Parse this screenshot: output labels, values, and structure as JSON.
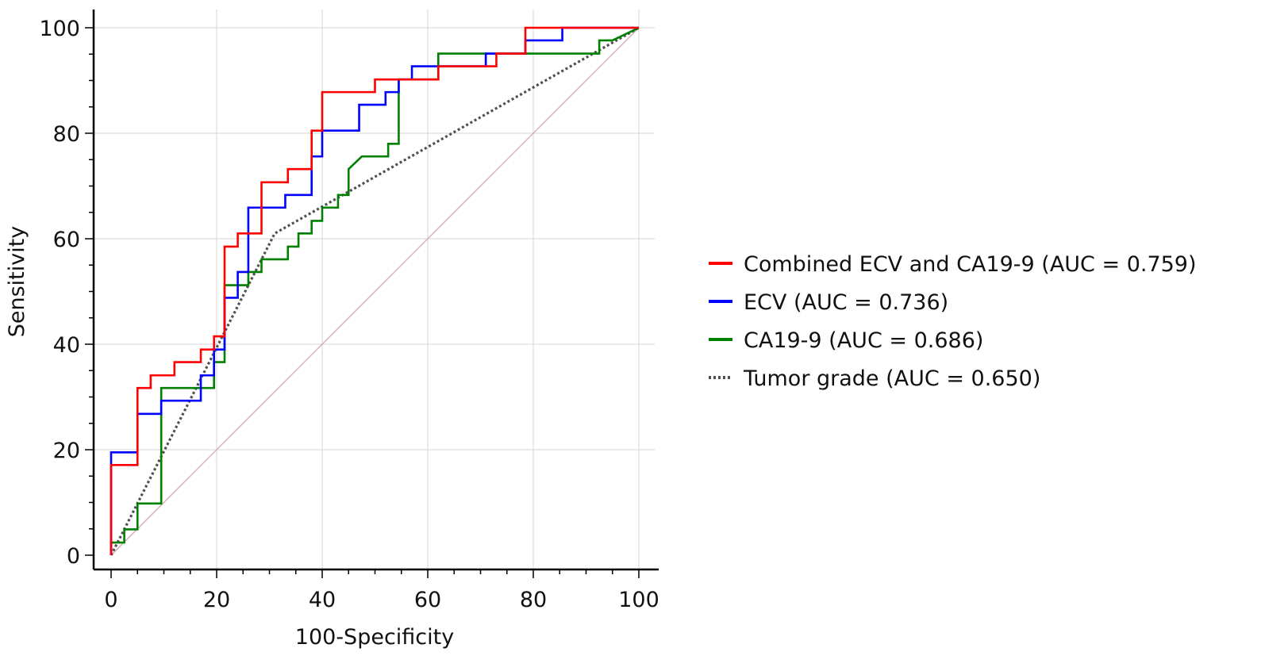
{
  "chart_data": {
    "type": "line",
    "xlabel": "100-Specificity",
    "ylabel": "Sensitivity",
    "xlim": [
      0,
      100
    ],
    "ylim": [
      0,
      100
    ],
    "x_ticks": [
      0,
      20,
      40,
      60,
      80,
      100
    ],
    "y_ticks": [
      0,
      20,
      40,
      60,
      80,
      100
    ],
    "grid": true,
    "legend_position": "right",
    "series": [
      {
        "name": "Combined ECV and CA19-9 (AUC = 0.759)",
        "color": "#ff0000",
        "style": "step",
        "points": [
          [
            0,
            0
          ],
          [
            0,
            17.1
          ],
          [
            5,
            17.1
          ],
          [
            5,
            31.7
          ],
          [
            7.5,
            31.7
          ],
          [
            7.5,
            34.1
          ],
          [
            12,
            34.1
          ],
          [
            12,
            36.6
          ],
          [
            17,
            36.6
          ],
          [
            17,
            39
          ],
          [
            19.5,
            39
          ],
          [
            19.5,
            41.5
          ],
          [
            21.5,
            41.5
          ],
          [
            21.5,
            58.5
          ],
          [
            24,
            58.5
          ],
          [
            24,
            61
          ],
          [
            28.5,
            61
          ],
          [
            28.5,
            70.7
          ],
          [
            33.5,
            70.7
          ],
          [
            33.5,
            73.2
          ],
          [
            38,
            73.2
          ],
          [
            38,
            80.5
          ],
          [
            40,
            80.5
          ],
          [
            40,
            87.8
          ],
          [
            50,
            87.8
          ],
          [
            50,
            90.2
          ],
          [
            62,
            90.2
          ],
          [
            62,
            92.7
          ],
          [
            73,
            92.7
          ],
          [
            73,
            95.1
          ],
          [
            78.5,
            95.1
          ],
          [
            78.5,
            100
          ],
          [
            100,
            100
          ]
        ]
      },
      {
        "name": "ECV (AUC = 0.736)",
        "color": "#0000ff",
        "style": "step",
        "points": [
          [
            0,
            0
          ],
          [
            0,
            19.5
          ],
          [
            5,
            19.5
          ],
          [
            5,
            26.8
          ],
          [
            9.5,
            26.8
          ],
          [
            9.5,
            29.3
          ],
          [
            17,
            29.3
          ],
          [
            17,
            34.1
          ],
          [
            19.5,
            34.1
          ],
          [
            19.5,
            39
          ],
          [
            21.5,
            39
          ],
          [
            21.5,
            48.8
          ],
          [
            24,
            48.8
          ],
          [
            24,
            53.7
          ],
          [
            26,
            53.7
          ],
          [
            26,
            65.9
          ],
          [
            33,
            65.9
          ],
          [
            33,
            68.3
          ],
          [
            38,
            68.3
          ],
          [
            38,
            75.6
          ],
          [
            40,
            75.6
          ],
          [
            40,
            80.5
          ],
          [
            47,
            80.5
          ],
          [
            47,
            85.4
          ],
          [
            52,
            85.4
          ],
          [
            52,
            87.8
          ],
          [
            54.5,
            87.8
          ],
          [
            54.5,
            90.2
          ],
          [
            57,
            90.2
          ],
          [
            57,
            92.7
          ],
          [
            71,
            92.7
          ],
          [
            71,
            95.1
          ],
          [
            78.5,
            95.1
          ],
          [
            78.5,
            97.6
          ],
          [
            85.5,
            97.6
          ],
          [
            85.5,
            100
          ],
          [
            100,
            100
          ]
        ]
      },
      {
        "name": "CA19-9 (AUC = 0.686)",
        "color": "#008000",
        "style": "step",
        "points": [
          [
            0,
            0
          ],
          [
            0,
            2.4
          ],
          [
            2.5,
            2.4
          ],
          [
            2.5,
            4.9
          ],
          [
            5,
            4.9
          ],
          [
            5,
            9.8
          ],
          [
            9.5,
            9.8
          ],
          [
            9.5,
            31.7
          ],
          [
            19.5,
            31.7
          ],
          [
            19.5,
            36.6
          ],
          [
            21.5,
            36.6
          ],
          [
            21.5,
            51.2
          ],
          [
            26,
            51.2
          ],
          [
            26,
            53.7
          ],
          [
            28.5,
            53.7
          ],
          [
            28.5,
            56.1
          ],
          [
            33.5,
            56.1
          ],
          [
            33.5,
            58.5
          ],
          [
            35.5,
            58.5
          ],
          [
            35.5,
            61
          ],
          [
            38,
            61
          ],
          [
            38,
            63.4
          ],
          [
            40,
            63.4
          ],
          [
            40,
            65.9
          ],
          [
            43,
            65.9
          ],
          [
            43,
            68.3
          ],
          [
            45,
            68.3
          ],
          [
            45,
            73.2
          ],
          [
            47.5,
            75.6
          ],
          [
            52.5,
            75.6
          ],
          [
            52.5,
            78
          ],
          [
            54.5,
            78
          ],
          [
            54.5,
            90.2
          ],
          [
            62,
            90.2
          ],
          [
            62,
            95.1
          ],
          [
            92.5,
            95.1
          ],
          [
            92.5,
            97.6
          ],
          [
            95,
            97.6
          ],
          [
            100,
            100
          ]
        ]
      },
      {
        "name": "Tumor grade (AUC = 0.650)",
        "color": "#505050",
        "style": "dotted",
        "points": [
          [
            0,
            0
          ],
          [
            31,
            61
          ],
          [
            100,
            100
          ]
        ]
      }
    ],
    "reference_line": {
      "color": "#d4a8a8",
      "points": [
        [
          0,
          0
        ],
        [
          100,
          100
        ]
      ]
    }
  }
}
